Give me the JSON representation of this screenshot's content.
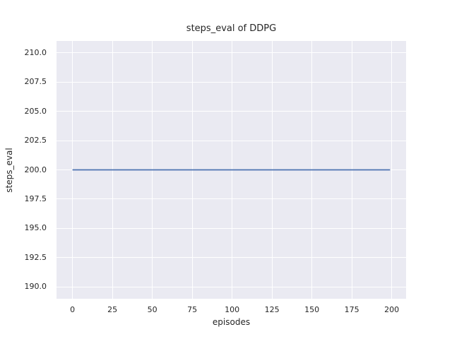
{
  "chart_data": {
    "type": "line",
    "title": "steps_eval of DDPG",
    "xlabel": "episodes",
    "ylabel": "steps_eval",
    "xlim": [
      -10,
      209
    ],
    "ylim": [
      189,
      211
    ],
    "x_tick_values": [
      0,
      25,
      50,
      75,
      100,
      125,
      150,
      175,
      200
    ],
    "x_tick_labels": [
      "0",
      "25",
      "50",
      "75",
      "100",
      "125",
      "150",
      "175",
      "200"
    ],
    "y_tick_values": [
      190.0,
      192.5,
      195.0,
      197.5,
      200.0,
      202.5,
      205.0,
      207.5,
      210.0
    ],
    "y_tick_labels": [
      "190.0",
      "192.5",
      "195.0",
      "197.5",
      "200.0",
      "202.5",
      "205.0",
      "207.5",
      "210.0"
    ],
    "grid": true,
    "legend": "none",
    "series": [
      {
        "name": "DDPG",
        "color": "#4c72b0",
        "points": [
          [
            0,
            200
          ],
          [
            199,
            200
          ]
        ]
      }
    ],
    "styles": {
      "plot_bg": "#eaeaf2",
      "grid_color": "#ffffff",
      "text_color": "#262626"
    }
  }
}
